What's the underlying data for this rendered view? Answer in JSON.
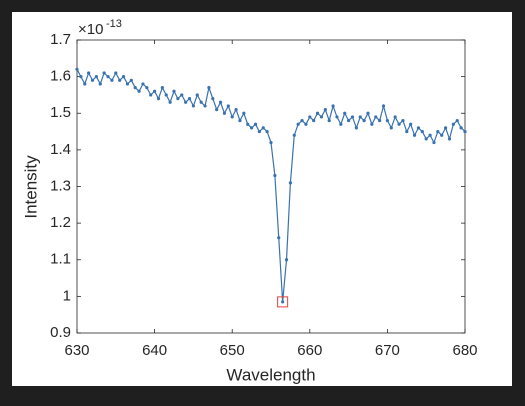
{
  "chart_data": {
    "type": "line",
    "x_label": "Wavelength",
    "y_label": "Intensity",
    "y_exponent": {
      "base": "×10",
      "power": "-13"
    },
    "xlim": [
      630,
      680
    ],
    "xticks": [
      630,
      640,
      650,
      660,
      670,
      680
    ],
    "ylim": [
      0.9,
      1.7
    ],
    "yticks": [
      0.9,
      1,
      1.1,
      1.2,
      1.3,
      1.4,
      1.5,
      1.6,
      1.7
    ],
    "grid": false,
    "series": [
      {
        "color": "#3a72b0",
        "x": [
          630,
          630.5,
          631,
          631.5,
          632,
          632.5,
          633,
          633.5,
          634,
          634.5,
          635,
          635.5,
          636,
          636.5,
          637,
          637.5,
          638,
          638.5,
          639,
          639.5,
          640,
          640.5,
          641,
          641.5,
          642,
          642.5,
          643,
          643.5,
          644,
          644.5,
          645,
          645.5,
          646,
          646.5,
          647,
          647.5,
          648,
          648.5,
          649,
          649.5,
          650,
          650.5,
          651,
          651.5,
          652,
          652.5,
          653,
          653.5,
          654,
          654.5,
          655,
          655.5,
          656,
          656.5,
          657,
          657.5,
          658,
          658.5,
          659,
          659.5,
          660,
          660.5,
          661,
          661.5,
          662,
          662.5,
          663,
          663.5,
          664,
          664.5,
          665,
          665.5,
          666,
          666.5,
          667,
          667.5,
          668,
          668.5,
          669,
          669.5,
          670,
          670.5,
          671,
          671.5,
          672,
          672.5,
          673,
          673.5,
          674,
          674.5,
          675,
          675.5,
          676,
          676.5,
          677,
          677.5,
          678,
          678.5,
          679,
          679.5,
          680
        ],
        "values": [
          1.62,
          1.6,
          1.58,
          1.61,
          1.59,
          1.6,
          1.58,
          1.61,
          1.6,
          1.59,
          1.61,
          1.59,
          1.6,
          1.58,
          1.59,
          1.57,
          1.56,
          1.58,
          1.57,
          1.55,
          1.56,
          1.54,
          1.57,
          1.55,
          1.53,
          1.56,
          1.54,
          1.55,
          1.53,
          1.54,
          1.52,
          1.55,
          1.53,
          1.52,
          1.57,
          1.54,
          1.51,
          1.53,
          1.5,
          1.52,
          1.49,
          1.51,
          1.48,
          1.5,
          1.47,
          1.46,
          1.47,
          1.45,
          1.46,
          1.45,
          1.42,
          1.33,
          1.16,
          0.985,
          1.1,
          1.31,
          1.44,
          1.47,
          1.48,
          1.47,
          1.49,
          1.48,
          1.5,
          1.49,
          1.51,
          1.48,
          1.52,
          1.49,
          1.47,
          1.5,
          1.48,
          1.49,
          1.46,
          1.49,
          1.48,
          1.5,
          1.47,
          1.49,
          1.48,
          1.52,
          1.48,
          1.46,
          1.49,
          1.47,
          1.48,
          1.45,
          1.47,
          1.44,
          1.46,
          1.45,
          1.43,
          1.44,
          1.42,
          1.45,
          1.44,
          1.46,
          1.43,
          1.47,
          1.48,
          1.46,
          1.45
        ]
      }
    ],
    "highlight": {
      "x": 656.5,
      "y": 0.985,
      "color": "#e8413c"
    }
  }
}
